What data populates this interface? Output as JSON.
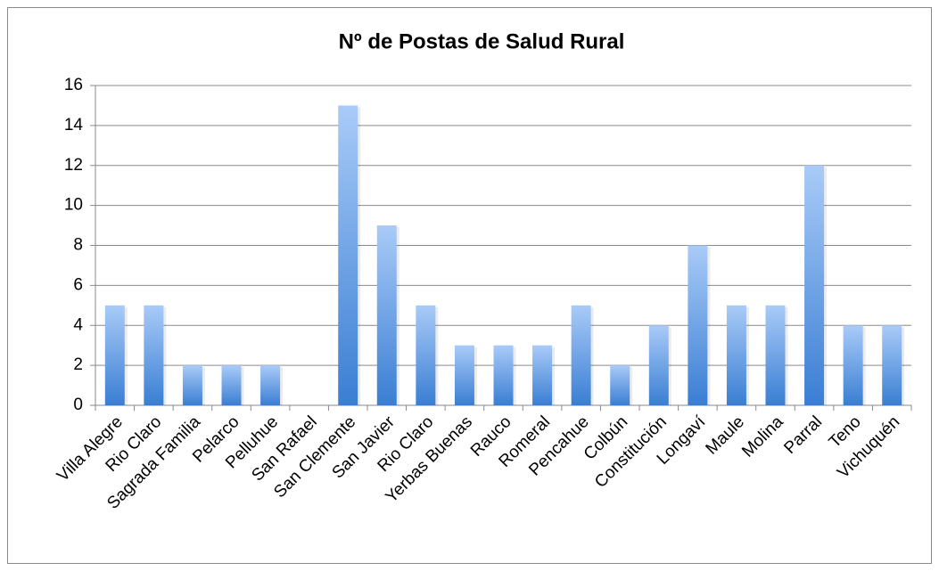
{
  "chart_data": {
    "type": "bar",
    "title": "Nº de Postas de Salud Rural",
    "categories": [
      "Villa Alegre",
      "Rio Claro",
      "Sagrada Familia",
      "Pelarco",
      "Pelluhue",
      "San Rafael",
      "San Clemente",
      "San Javier",
      "Rio Claro",
      "Yerbas Buenas",
      "Rauco",
      "Romeral",
      "Pencahue",
      "Colbún",
      "Constitución",
      "Longaví",
      "Maule",
      "Molina",
      "Parral",
      "Teno",
      "Vichuquén"
    ],
    "values": [
      5,
      5,
      2,
      2,
      2,
      0,
      15,
      9,
      5,
      3,
      3,
      3,
      5,
      2,
      4,
      8,
      5,
      5,
      12,
      4,
      4
    ],
    "color": "#4a8ad8",
    "ylim": [
      0,
      16
    ],
    "yticks": [
      0,
      2,
      4,
      6,
      8,
      10,
      12,
      14,
      16
    ],
    "grid": true
  }
}
